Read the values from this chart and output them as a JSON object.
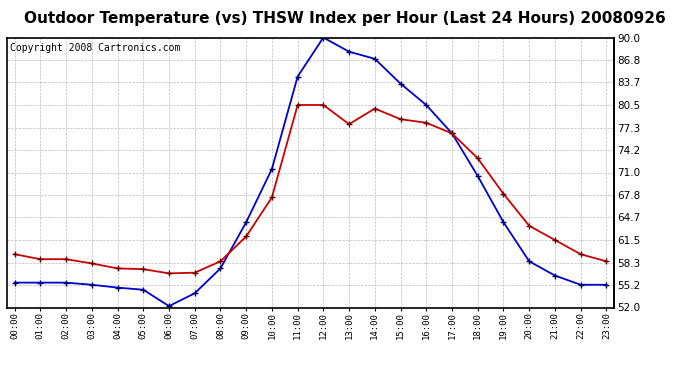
{
  "title": "Outdoor Temperature (vs) THSW Index per Hour (Last 24 Hours) 20080926",
  "copyright": "Copyright 2008 Cartronics.com",
  "hours": [
    "00:00",
    "01:00",
    "02:00",
    "03:00",
    "04:00",
    "05:00",
    "06:00",
    "07:00",
    "08:00",
    "09:00",
    "10:00",
    "11:00",
    "12:00",
    "13:00",
    "14:00",
    "15:00",
    "16:00",
    "17:00",
    "18:00",
    "19:00",
    "20:00",
    "21:00",
    "22:00",
    "23:00"
  ],
  "temp_red": [
    59.5,
    58.8,
    58.8,
    58.2,
    57.5,
    57.4,
    56.8,
    56.9,
    58.5,
    62.0,
    67.5,
    80.5,
    80.5,
    77.8,
    80.0,
    78.5,
    78.0,
    76.5,
    73.0,
    68.0,
    63.5,
    61.5,
    59.5,
    58.5
  ],
  "thsw_blue": [
    55.5,
    55.5,
    55.5,
    55.2,
    54.8,
    54.5,
    52.2,
    54.0,
    57.5,
    64.0,
    71.5,
    84.5,
    90.0,
    88.0,
    87.0,
    83.5,
    80.5,
    76.5,
    70.5,
    64.0,
    58.5,
    56.5,
    55.2,
    55.2
  ],
  "yticks": [
    52.0,
    55.2,
    58.3,
    61.5,
    64.7,
    67.8,
    71.0,
    74.2,
    77.3,
    80.5,
    83.7,
    86.8,
    90.0
  ],
  "ymin": 52.0,
  "ymax": 90.0,
  "temp_color": "#cc0000",
  "thsw_color": "#0000cc",
  "bg_color": "#ffffff",
  "grid_color": "#bbbbbb",
  "title_fontsize": 11,
  "copyright_fontsize": 7,
  "marker": "+"
}
